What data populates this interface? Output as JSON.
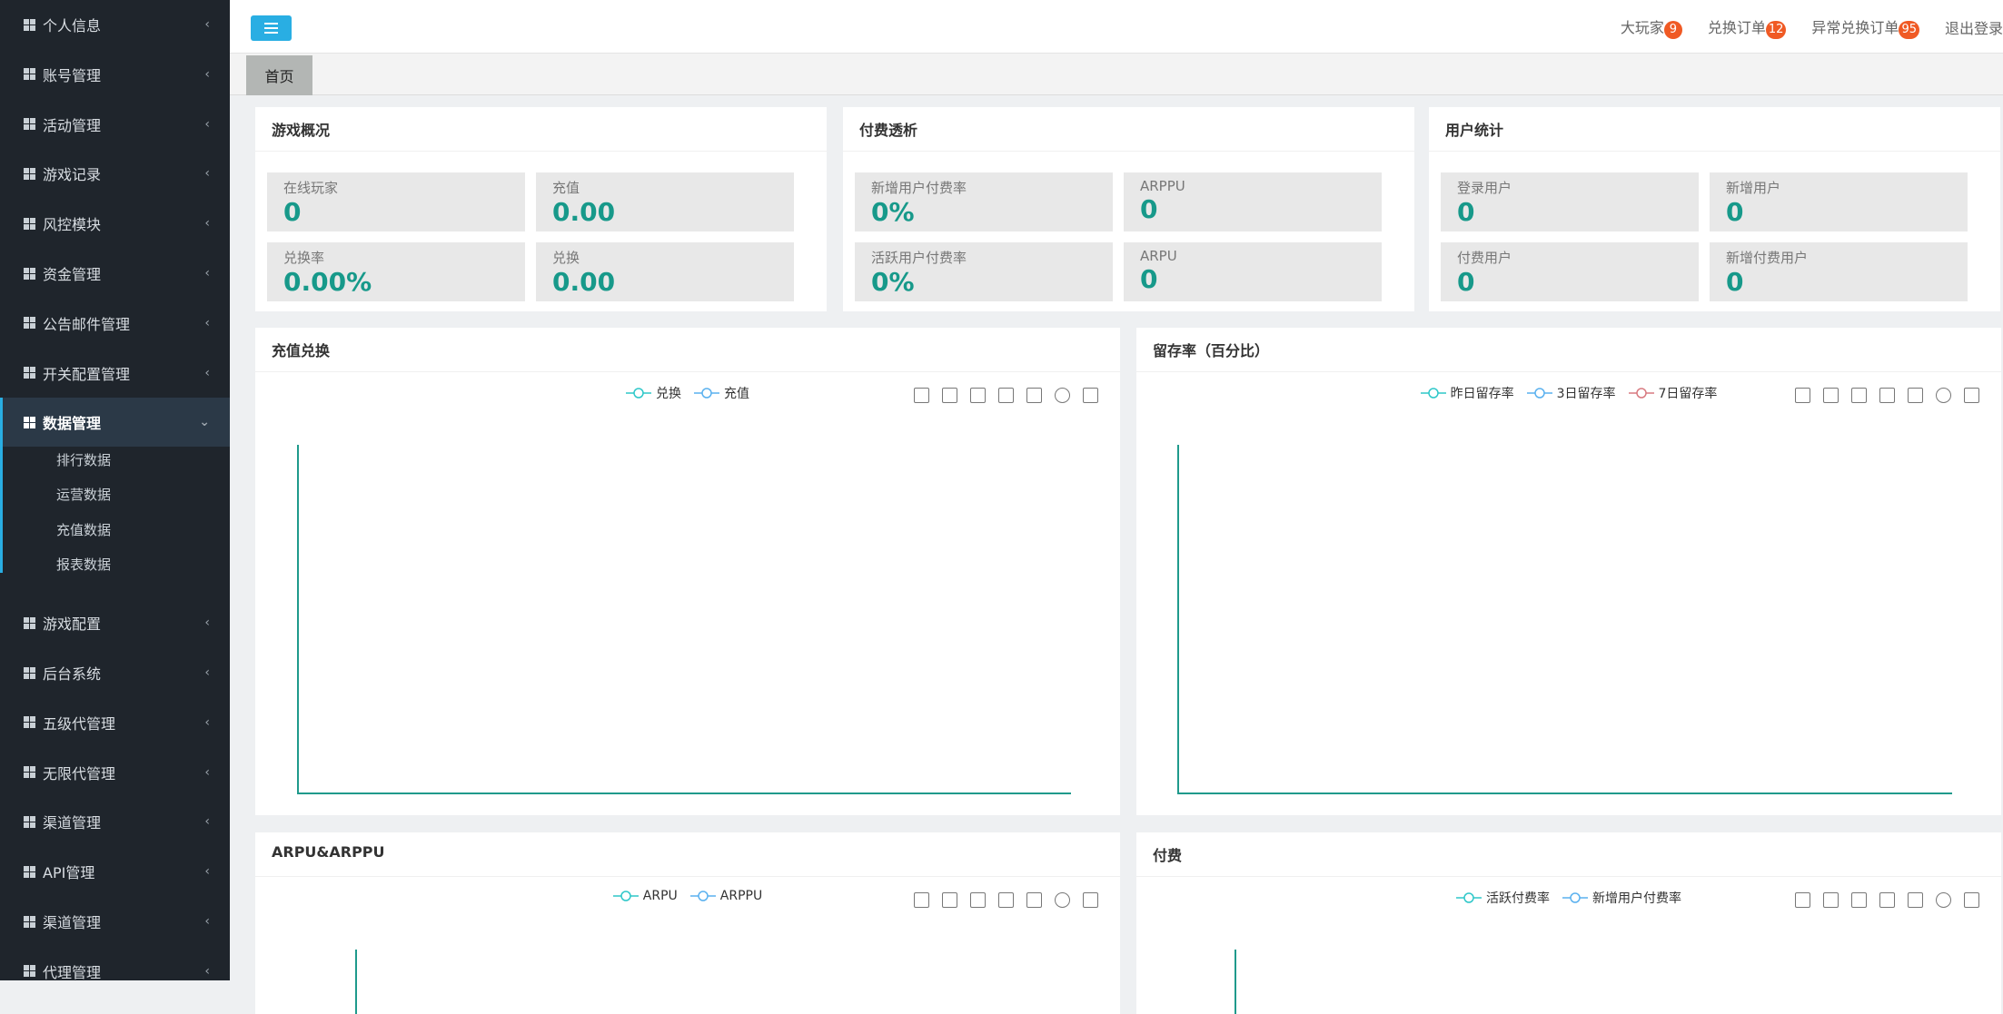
{
  "sidebar": {
    "menu": [
      {
        "label": "个人信息"
      },
      {
        "label": "账号管理"
      },
      {
        "label": "活动管理"
      },
      {
        "label": "游戏记录"
      },
      {
        "label": "风控模块"
      },
      {
        "label": "资金管理"
      },
      {
        "label": "公告邮件管理"
      },
      {
        "label": "开关配置管理"
      },
      {
        "label": "数据管理",
        "children": [
          "排行数据",
          "运营数据",
          "充值数据",
          "报表数据"
        ]
      },
      {
        "label": "游戏配置"
      },
      {
        "label": "后台系统"
      },
      {
        "label": "五级代管理"
      },
      {
        "label": "无限代管理"
      },
      {
        "label": "渠道管理"
      },
      {
        "label": "API管理"
      },
      {
        "label": "渠道管理"
      },
      {
        "label": "代理管理"
      }
    ]
  },
  "header": {
    "notices": [
      {
        "label": "大玩家",
        "count": 9
      },
      {
        "label": "兑换订单",
        "count": 12
      },
      {
        "label": "异常兑换订单",
        "count": 95
      }
    ],
    "logout": "退出登录"
  },
  "tabs": [
    "首页"
  ],
  "summary_panels": [
    {
      "title": "游戏概况",
      "stats": [
        {
          "label": "在线玩家",
          "value": "0"
        },
        {
          "label": "充值",
          "value": "0.00"
        },
        {
          "label": "兑换率",
          "value": "0.00%"
        },
        {
          "label": "兑换",
          "value": "0.00"
        }
      ]
    },
    {
      "title": "付费透析",
      "stats": [
        {
          "label": "新增用户付费率",
          "value": "0%"
        },
        {
          "label": "ARPPU",
          "value": "0"
        },
        {
          "label": "活跃用户付费率",
          "value": "0%"
        },
        {
          "label": "ARPU",
          "value": "0"
        }
      ]
    },
    {
      "title": "用户统计",
      "stats": [
        {
          "label": "登录用户",
          "value": "0"
        },
        {
          "label": "新增用户",
          "value": "0"
        },
        {
          "label": "付费用户",
          "value": "0"
        },
        {
          "label": "新增付费用户",
          "value": "0"
        }
      ]
    }
  ],
  "chart_panels": [
    {
      "title": "充值兑换",
      "legend": [
        {
          "name": "兑换",
          "color": "#2ec7c9"
        },
        {
          "name": "充值",
          "color": "#5ab1ef"
        }
      ]
    },
    {
      "title": "留存率（百分比）",
      "legend": [
        {
          "name": "昨日留存率",
          "color": "#2ec7c9"
        },
        {
          "name": "3日留存率",
          "color": "#5ab1ef"
        },
        {
          "name": "7日留存率",
          "color": "#d87a80"
        }
      ]
    },
    {
      "title": "ARPU&ARPPU",
      "legend": [
        {
          "name": "ARPU",
          "color": "#2ec7c9"
        },
        {
          "name": "ARPPU",
          "color": "#5ab1ef"
        }
      ]
    },
    {
      "title": "付费",
      "legend": [
        {
          "name": "活跃付费率",
          "color": "#2ec7c9"
        },
        {
          "name": "新增用户付费率",
          "color": "#5ab1ef"
        }
      ]
    }
  ]
}
